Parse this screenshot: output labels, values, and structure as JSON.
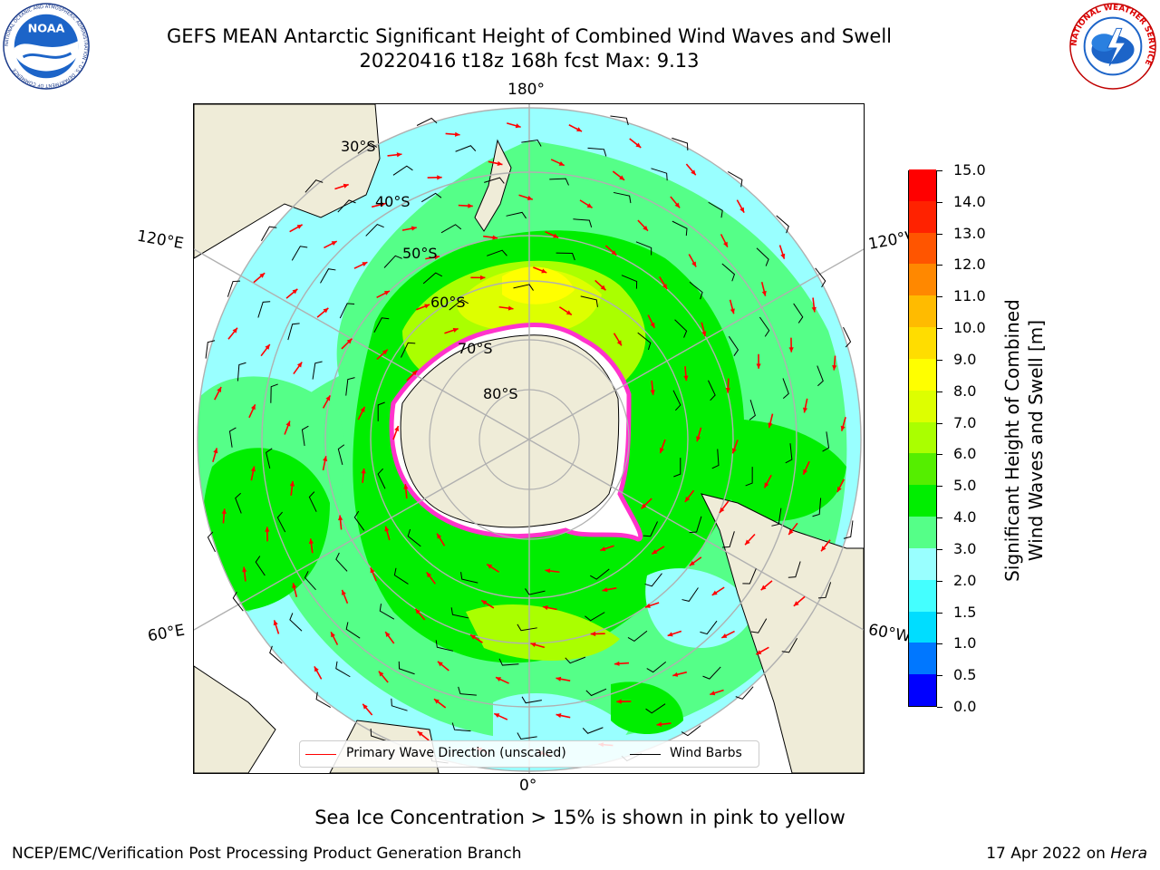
{
  "header": {
    "title_line1": "GEFS MEAN Antarctic Significant Height of Combined Wind Waves and Swell",
    "title_line2": "20220416 t18z 168h fcst   Max: 9.13"
  },
  "logos": {
    "noaa_text": "NOAA",
    "noaa_ring_text": "NATIONAL OCEANIC AND ATMOSPHERIC ADMINISTRATION • U.S. DEPARTMENT OF COMMERCE",
    "nws_ring_text": "NATIONAL WEATHER SERVICE"
  },
  "map": {
    "projection": "south-polar-stereographic",
    "longitude_labels": {
      "top": "180°",
      "upper_left": "120°E",
      "upper_right": "120°W",
      "lower_left": "60°E",
      "lower_right": "60°W",
      "bottom": "0°"
    },
    "latitude_labels": [
      "30°S",
      "40°S",
      "50°S",
      "60°S",
      "70°S",
      "80°S"
    ],
    "colors": {
      "land": "#efecd8",
      "ice_edge": "#ff33cc",
      "wave_arrow": "#ff0000",
      "wind_barb": "#000000",
      "gridline": "#b0b0b0"
    }
  },
  "legend": {
    "wave_direction_label": "Primary Wave Direction (unscaled)",
    "wind_barbs_label": "Wind Barbs"
  },
  "colorbar": {
    "title_line1": "Significant Height of Combined",
    "title_line2": "Wind Waves and Swell [m]",
    "tick_labels": [
      "0.0",
      "0.5",
      "1.0",
      "1.5",
      "2.0",
      "3.0",
      "4.0",
      "5.0",
      "6.0",
      "7.0",
      "8.0",
      "9.0",
      "10.0",
      "11.0",
      "12.0",
      "13.0",
      "14.0",
      "15.0"
    ],
    "colors": [
      "#0000ff",
      "#0077ff",
      "#00ddff",
      "#44ffff",
      "#99ffff",
      "#55ff88",
      "#00ee00",
      "#55ee00",
      "#aaff00",
      "#ddff00",
      "#ffff00",
      "#ffdd00",
      "#ffbb00",
      "#ff8800",
      "#ff5500",
      "#ff2200",
      "#ff0000"
    ]
  },
  "notes": {
    "sea_ice": "Sea Ice Concentration > 15% is shown in pink to yellow"
  },
  "footer": {
    "left": "NCEP/EMC/Verification Post Processing Product Generation Branch",
    "right_date": "17 Apr 2022 on ",
    "right_host": "Hera"
  }
}
